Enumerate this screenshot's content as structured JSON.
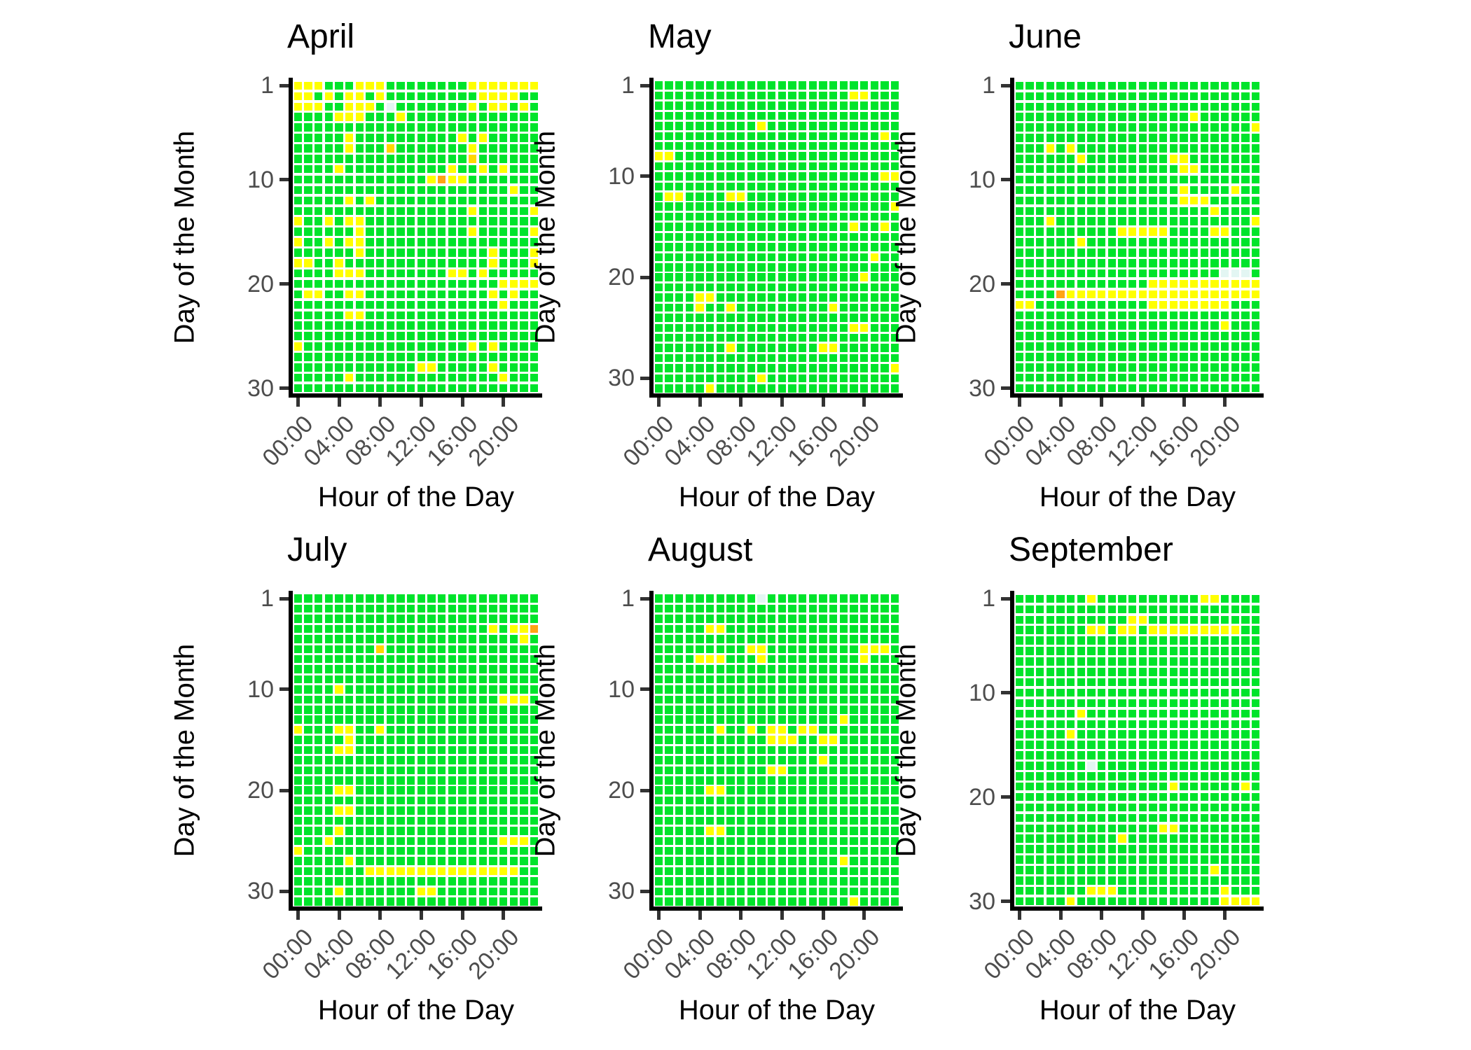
{
  "figure": {
    "x_axis_title": "Hour of the Day",
    "y_axis_title": "Day of the Month",
    "x_tick_labels": [
      "00:00",
      "04:00",
      "08:00",
      "12:00",
      "16:00",
      "20:00"
    ],
    "x_tick_hours": [
      0,
      4,
      8,
      12,
      16,
      20
    ],
    "y_tick_days": [
      1,
      10,
      20,
      30
    ],
    "background_color": "#FFFFFF",
    "axis_color": "#000000",
    "tick_label_color": "#4D4D4D"
  },
  "cell_colors": {
    "g": "#00E42B",
    "y": "#FFFF00",
    "d": "#FFD700",
    "o": "#FFA413",
    "w": "#E3F6F3"
  },
  "cell_color_meaning": {
    "g": "green-good",
    "y": "yellow-moderate",
    "d": "dark-yellow",
    "o": "orange",
    "w": "pale-missing"
  },
  "chart_data": [
    {
      "type": "heatmap",
      "title": "April",
      "days": 30,
      "hours_per_row": 24,
      "rows": [
        "yyygggyyyggggggggyyyyyyy",
        "yygygyygygggggggggyyyygg",
        "yyyggyyygwgggggggygyygyg",
        "ggggyyygggyggggggggggggg",
        "gggggggggggggggggggggggg",
        "gggggyggggggggggygyggggg",
        "gggggygggdgggggggygggggg",
        "gggggggggggggggggdgggggg",
        "ggggyggggggggggyggygyggg",
        "gggggggggggggyoyyggggggg",
        "gggggggggggggggggggggygg",
        "gggggygygggggggggggggggg",
        "gggggggggggggggggygggggy",
        "yggygyyggggggggggggggggg",
        "ggggggyggggggggggygggggy",
        "yggygyyggggggggggggggggg",
        "ggggggyggggggggggggygggy",
        "yyggyggggggggggggggygggy",
        "ggggyyyggggggggyygyggggg",
        "ggggggggggggggggggggyyyy",
        "gyyggyyggggggggggggygygg",
        "ggggggggggggggggggggyggg",
        "gggggyyggggggggggggggggg",
        "gggggggggggggggggggggggg",
        "gggggggggggggggggggggggg",
        "yggggggggggggggggygygggg",
        "gggggggggggggggggggggggg",
        "ggggggggggggyygggggygggg",
        "gggggyggggggggggggggyggg",
        "gggggggggggggggggggggggg"
      ]
    },
    {
      "type": "heatmap",
      "title": "May",
      "days": 31,
      "hours_per_row": 24,
      "rows": [
        "gggggggggggggggggggggggg",
        "gggggggggggggggggggyyggg",
        "gggggggggggggggggggggggg",
        "gggggggggggggggggggggggg",
        "ggggggggggyggggggggggggg",
        "ggggggggggggggggggggggyg",
        "gggggggggggggggggggggggg",
        "yygggggggggggggggggggggg",
        "gggggggggggggggggggggggg",
        "ggggggggggggggggggggggyy",
        "gggggggggggggggggggggggg",
        "gyyggggyyggggggggggggggg",
        "gggggggggggggggggggggggy",
        "gggggggggggggggggggggggg",
        "gggggggggggggggggggyggyg",
        "gggggggggggggggggggggggg",
        "gggggggggggggggggggggggg",
        "gggggggggggggggggggggygg",
        "gggggggggggggggggggggggg",
        "ggggggggggggggggggggyggg",
        "gggggggggggggggggggggggg",
        "ggggyygggggggggggggggggg",
        "ggggyggygggggggggygggggg",
        "gggggggggggggggggggggggg",
        "gggggggggggggggggggyyggg",
        "gggggggggggggggggggggggg",
        "gggggggyggggggggyygggggg",
        "gggggggggggggggggggggggg",
        "gggggggggggggggggggggggy",
        "ggggggggggyggggggggggggg",
        "gggggygggggggggggggggggg"
      ]
    },
    {
      "type": "heatmap",
      "title": "June",
      "days": 30,
      "hours_per_row": 24,
      "rows": [
        "gggggggggggggggggggggggg",
        "gggggggggggggggggggggggg",
        "gggggggggggggggggggggggg",
        "gggggggggggggggggygggggg",
        "gggggggggggggggggggggggy",
        "gggggggggggggggggggggggg",
        "gggygygggggggggggggggggg",
        "ggggggyggggggggyyggggggg",
        "ggggggggggggggggyygggggg",
        "gggggggggggggggggggggggg",
        "ggggggggggggggggyggggygg",
        "ggggggggggggggggyyyggggg",
        "gggggggggggggggggggygggg",
        "gggygggggggggggggggggggy",
        "ggggggggggyyyyyggggyyggg",
        "ggggggyggggggggggggggggg",
        "gggggggggggggggggggggggg",
        "gggggggggggggggggggggggg",
        "ggggggggggggggggggggwwwg",
        "gggggggggggggyyyyyyyyyyy",
        "ggggoyyyyyyyyyyyyyyyyyyy",
        "yygggggggggggyyyyyyyyggg",
        "gggggggggggggggggggggggg",
        "ggggggggggggggggggggyggg",
        "gggggggggggggggggggggggg",
        "gggggggggggggggggggggggg",
        "gggggggggggggggggggggggg",
        "gggggggggggggggggggggggg",
        "gggggggggggggggggggggggg",
        "gggggggggggggggggggggggg"
      ]
    },
    {
      "type": "heatmap",
      "title": "July",
      "days": 31,
      "hours_per_row": 24,
      "rows": [
        "gggggggggggggggggggggggg",
        "gggggggggggggggggggggggg",
        "gggggggggggggggggggggggg",
        "gggggggggggggggggggygyyo",
        "ggggggggggggggggggggggyg",
        "ggggggggdggggggggggggggg",
        "gggggggggggggggggggggggg",
        "gggggggggggggggggggggggg",
        "gggggggggggggggggggggggg",
        "ggggyggggggggggggggggggg",
        "ggggggggggggggggggggyyyg",
        "gggggggggggggggggggggggg",
        "gggggggggggggggggggggggg",
        "ygggyyggyggggggggggggggg",
        "gggggygggggggggggggggggg",
        "ggggyygggggggggggggggggg",
        "gggggggggggggggggggggggg",
        "gggggggggggggggggggggggg",
        "gggggggggggggggggggggggg",
        "ggggyygggggggggggggggggg",
        "gggggggggggggggggggggggg",
        "ggggyygggggggggggggggggg",
        "gggggggggggggggggggggggg",
        "ggggyggggggggggggggggggg",
        "gggyggggggggggggggggyyyg",
        "yggggggggggggggggggggggg",
        "gggggygggggggggggggggggg",
        "gggggggyyyyyyyyyyyyyyygg",
        "gggggggggggggggggggggggg",
        "ggggygggggggyygggggggggg",
        "gggggggggggggggggggggggg"
      ]
    },
    {
      "type": "heatmap",
      "title": "August",
      "days": 31,
      "hours_per_row": 24,
      "rows": [
        "ggggggggggwggggggggggggg",
        "gggggggggggggggggggggggg",
        "gggggggggggggggggggggggg",
        "gggggyyggggggggggggggggg",
        "gggggggggggggggggggggggg",
        "gggggggggyygggggggggyyyg",
        "ggggyyygggygggggggggyggg",
        "gggggggggggggggggggggggg",
        "gggggggggggggggggggggggg",
        "gggggggggggggggggggggggg",
        "gggggggggggggggggggggggg",
        "gggggggggggggggggggggggg",
        "ggggggggggggggggggyggggg",
        "ggggggyggygyygyygggggggg",
        "gggggggggggyyyggyygggggg",
        "gggggggggggggggggggggggg",
        "ggggggggggggggggyggggggg",
        "gggggggggggyyggggggggggg",
        "gggggggggggggggggggggggg",
        "gggggyyggggggggggggggggg",
        "gggggggggggggggggggggggg",
        "gggggggggggggggggggggggg",
        "gggggggggggggggggggggggg",
        "gggggyyggggggggggggggggg",
        "gggggggggggggggggggggggg",
        "gggggggggggggggggggggggg",
        "ggggggggggggggggggyggggg",
        "gggggggggggggggggggggggg",
        "gggggggggggggggggggggggg",
        "gggggggggggggggggggggggg",
        "gggggggggggggggggggygggg"
      ]
    },
    {
      "type": "heatmap",
      "title": "September",
      "days": 30,
      "hours_per_row": 24,
      "rows": [
        "gggggggyggggggggggyygggg",
        "gggggggggggggggggggggggg",
        "gggggggggggyyggggggggggg",
        "gggggggyygyygyyyyyyyyygg",
        "gggggggggggggggggggggggg",
        "gggggggggggggggggggggggg",
        "gggggggggggggggggggggggg",
        "gggggggggggggggggggggggg",
        "gggggggggggggggggggggggg",
        "gggggggggggggggggggggggg",
        "gggggggggggggggggggggggg",
        "ggggggyggggggggggggggggg",
        "gggggggggggggggggggggggg",
        "gggggygggggggggggggggggg",
        "gggggggggggggggggggggggg",
        "gggggggggggggggggggggggg",
        "gggggggwgggggggggggggggg",
        "gggggggggggggggggggggggg",
        "gggggggggggggggyggggggyg",
        "gggggggggggggggggggggggg",
        "gggggggggggggggggggggggg",
        "gggggggggggggggggggggggg",
        "ggggggggggggggyygggggggg",
        "ggggggggggyggggggggggggg",
        "gggggggggggggggggggggggg",
        "gggggggggggggggggggggggg",
        "gggggggggggggggggggygggg",
        "gggggggggggggggggggggggg",
        "gggggggyyyggggggggggyggg",
        "gggggyggggggggggggggyyyy"
      ]
    }
  ]
}
